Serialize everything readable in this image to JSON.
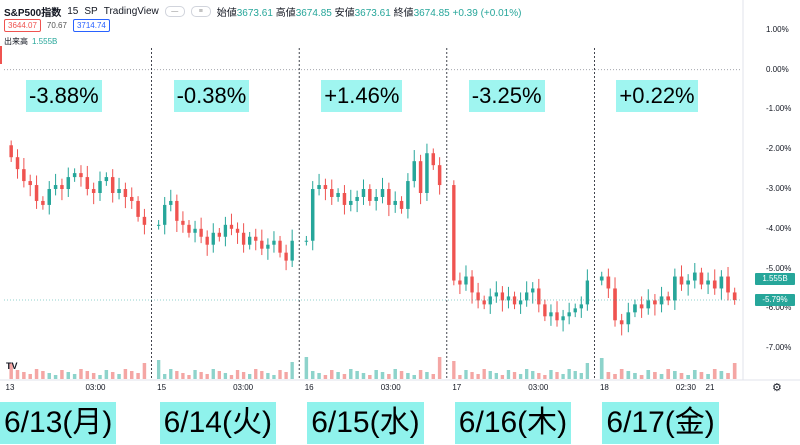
{
  "header": {
    "symbol": "S&P500指数",
    "interval": "15",
    "exchange": "SP",
    "source": "TradingView",
    "ohlc": {
      "open_label": "始値",
      "open": "3673.61",
      "high_label": "高値",
      "high": "3674.85",
      "low_label": "安値",
      "low": "3673.61",
      "close_label": "終値",
      "close": "3674.85",
      "change": "+0.39 (+0.01%)"
    },
    "bid": "3644.07",
    "spread": "70.67",
    "ask": "3714.74",
    "volume_label": "出来高",
    "volume_value": "1.555B"
  },
  "axis": {
    "y_ticks": [
      "1.00%",
      "0.00%",
      "-1.00%",
      "-2.00%",
      "-3.00%",
      "-4.00%",
      "-5.00%",
      "-6.00%",
      "-7.00%"
    ],
    "y_tick_values": [
      1,
      0,
      -1,
      -2,
      -3,
      -4,
      -5,
      -6,
      -7
    ],
    "x_ticks": [
      "13",
      "03:00",
      "15",
      "03:00",
      "16",
      "03:00",
      "17",
      "03:00",
      "18",
      "02:30",
      "21"
    ],
    "badge_volume": "1.555B",
    "badge_price": "-5.79%",
    "badge_volume_color": "#26a69a",
    "badge_price_color": "#26a69a"
  },
  "annotations": {
    "day_changes": [
      "-3.88%",
      "-0.38%",
      "+1.46%",
      "-3.25%",
      "+0.22%"
    ],
    "days": [
      "6/13(月)",
      "6/14(火)",
      "6/15(水)",
      "6/16(木)",
      "6/17(金)"
    ]
  },
  "colors": {
    "up": "#26a69a",
    "down": "#ef5350",
    "up_vol": "#8dd3cb",
    "down_vol": "#f4a6a4"
  },
  "chart_data": {
    "type": "candlestick",
    "ylabel": "",
    "ylim": [
      -7.6,
      1.4
    ],
    "y_unit": "%",
    "sessions": [
      {
        "day": "6/13(月)",
        "change": "-3.88%",
        "closes": [
          -2.2,
          -2.5,
          -2.8,
          -2.9,
          -3.3,
          -3.4,
          -3.0,
          -2.9,
          -3.0,
          -2.7,
          -2.6,
          -2.7,
          -3.0,
          -3.1,
          -2.8,
          -2.7,
          -3.1,
          -3.0,
          -3.2,
          -3.3,
          -3.7,
          -3.9
        ]
      },
      {
        "day": "6/14(火)",
        "change": "-0.38%",
        "closes": [
          -3.9,
          -3.4,
          -3.3,
          -3.8,
          -3.9,
          -4.1,
          -4.0,
          -4.2,
          -4.4,
          -4.1,
          -4.2,
          -3.9,
          -4.0,
          -4.1,
          -4.4,
          -4.2,
          -4.3,
          -4.5,
          -4.4,
          -4.3,
          -4.6,
          -4.8,
          -4.3
        ]
      },
      {
        "day": "6/15(水)",
        "change": "+1.46%",
        "closes": [
          -4.3,
          -3.0,
          -2.9,
          -3.0,
          -3.2,
          -3.1,
          -3.4,
          -3.3,
          -3.2,
          -3.0,
          -3.3,
          -3.2,
          -3.0,
          -3.4,
          -3.3,
          -3.5,
          -2.8,
          -2.3,
          -3.1,
          -2.1,
          -2.4,
          -2.9
        ]
      },
      {
        "day": "6/16(木)",
        "change": "-3.25%",
        "closes": [
          -5.3,
          -5.4,
          -5.2,
          -5.6,
          -5.8,
          -5.9,
          -5.7,
          -5.6,
          -5.8,
          -5.7,
          -5.9,
          -5.8,
          -5.6,
          -5.5,
          -5.9,
          -6.2,
          -6.1,
          -6.3,
          -6.2,
          -6.1,
          -6.0,
          -5.9,
          -5.3
        ]
      },
      {
        "day": "6/17(金)",
        "change": "+0.22%",
        "closes": [
          -5.2,
          -5.5,
          -6.3,
          -6.4,
          -6.1,
          -5.9,
          -6.0,
          -5.8,
          -5.9,
          -5.7,
          -5.8,
          -5.2,
          -5.4,
          -5.3,
          -5.1,
          -5.4,
          -5.3,
          -5.5,
          -5.2,
          -5.6,
          -5.79
        ]
      }
    ]
  }
}
